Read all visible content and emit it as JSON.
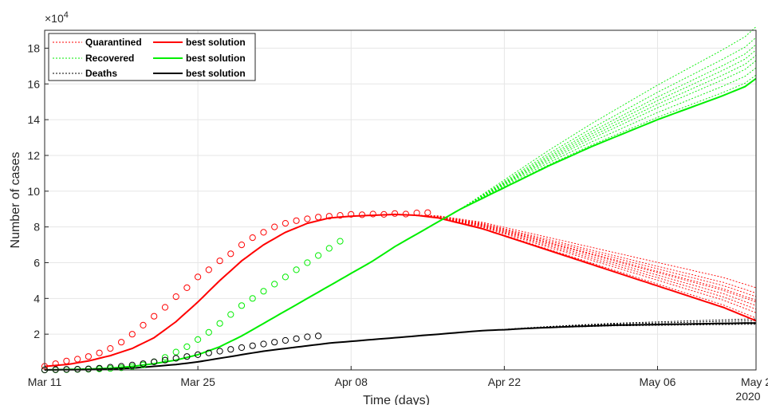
{
  "chart_data": {
    "type": "line",
    "xlabel": "Time (days)",
    "ylabel": "Number of cases",
    "y_exponent_label": "×10",
    "y_exponent_power": "4",
    "x_year_label": "2020",
    "xlim_days": [
      0,
      65
    ],
    "ylim": [
      0,
      19
    ],
    "y_ticks": [
      "2",
      "4",
      "6",
      "8",
      "10",
      "12",
      "14",
      "16",
      "18"
    ],
    "x_ticks": [
      "Mar 11",
      "Mar 25",
      "Apr 08",
      "Apr 22",
      "May 06",
      "May 2"
    ],
    "x_tick_days": [
      0,
      14,
      28,
      42,
      56,
      65
    ],
    "grid": true,
    "legend_position": "top-left",
    "legend": [
      {
        "label": "Quarantined",
        "style": "dotted",
        "color": "#ff0000"
      },
      {
        "label": "best solution",
        "style": "solid",
        "color": "#ff0000"
      },
      {
        "label": "Recovered",
        "style": "dotted",
        "color": "#00ee00"
      },
      {
        "label": "best solution",
        "style": "solid",
        "color": "#00ee00"
      },
      {
        "label": "Deaths",
        "style": "dotted",
        "color": "#000000"
      },
      {
        "label": "best solution",
        "style": "solid",
        "color": "#000000"
      }
    ],
    "colors": {
      "quarantined": "#ff0000",
      "recovered": "#00ee00",
      "deaths": "#000000"
    },
    "best_solution": {
      "quarantined": {
        "x": [
          0,
          2,
          4,
          6,
          8,
          10,
          12,
          14,
          16,
          18,
          20,
          22,
          24,
          26,
          28,
          30,
          32,
          34,
          36,
          38,
          40,
          42,
          44,
          46,
          48,
          50,
          52,
          54,
          56,
          58,
          60,
          62,
          64,
          65
        ],
        "y": [
          0.2,
          0.3,
          0.5,
          0.8,
          1.2,
          1.8,
          2.7,
          3.8,
          5.0,
          6.1,
          7.0,
          7.7,
          8.2,
          8.5,
          8.6,
          8.65,
          8.7,
          8.65,
          8.5,
          8.2,
          7.9,
          7.5,
          7.1,
          6.7,
          6.3,
          5.9,
          5.5,
          5.1,
          4.7,
          4.3,
          3.9,
          3.5,
          3.0,
          2.75
        ]
      },
      "recovered": {
        "x": [
          0,
          4,
          6,
          8,
          10,
          12,
          14,
          16,
          18,
          20,
          22,
          24,
          26,
          28,
          30,
          32,
          34,
          36,
          38,
          40,
          42,
          44,
          46,
          48,
          50,
          52,
          54,
          56,
          58,
          60,
          62,
          64,
          65
        ],
        "y": [
          0,
          0.05,
          0.1,
          0.2,
          0.35,
          0.55,
          0.85,
          1.3,
          1.9,
          2.6,
          3.3,
          4.0,
          4.7,
          5.4,
          6.1,
          6.9,
          7.6,
          8.3,
          9.0,
          9.6,
          10.2,
          10.8,
          11.4,
          11.95,
          12.5,
          13.0,
          13.5,
          14.0,
          14.45,
          14.9,
          15.35,
          15.85,
          16.3
        ]
      },
      "deaths": {
        "x": [
          0,
          4,
          6,
          8,
          10,
          12,
          14,
          16,
          18,
          20,
          22,
          24,
          26,
          28,
          30,
          32,
          34,
          36,
          38,
          40,
          42,
          44,
          46,
          48,
          50,
          52,
          54,
          56,
          58,
          60,
          62,
          64,
          65
        ],
        "y": [
          0,
          0.02,
          0.05,
          0.1,
          0.2,
          0.3,
          0.45,
          0.65,
          0.85,
          1.05,
          1.2,
          1.35,
          1.5,
          1.6,
          1.7,
          1.8,
          1.9,
          2.0,
          2.1,
          2.2,
          2.25,
          2.32,
          2.37,
          2.42,
          2.46,
          2.5,
          2.52,
          2.54,
          2.56,
          2.58,
          2.6,
          2.62,
          2.62
        ]
      }
    },
    "ensemble_endpoints": {
      "quarantined": [
        2.9,
        3.2,
        3.4,
        3.6,
        3.8,
        3.9,
        4.1,
        4.3,
        4.6
      ],
      "recovered": [
        16.5,
        16.9,
        17.3,
        17.6,
        17.9,
        18.2,
        18.6,
        19.2
      ],
      "deaths": [
        2.55,
        2.65,
        2.75,
        2.85
      ]
    },
    "observed": {
      "days": [
        0,
        1,
        2,
        3,
        4,
        5,
        6,
        7,
        8,
        9,
        10,
        11,
        12,
        13,
        14,
        15,
        16,
        17,
        18,
        19,
        20,
        21,
        22,
        23,
        24,
        25,
        26,
        27,
        28,
        29,
        30,
        31,
        32,
        33,
        34,
        35
      ],
      "quarantined": [
        0.2,
        0.35,
        0.5,
        0.6,
        0.75,
        0.95,
        1.2,
        1.55,
        2.0,
        2.5,
        3.0,
        3.5,
        4.1,
        4.6,
        5.2,
        5.6,
        6.1,
        6.5,
        7.0,
        7.4,
        7.7,
        8.0,
        8.2,
        8.35,
        8.45,
        8.55,
        8.6,
        8.65,
        8.7,
        8.68,
        8.72,
        8.7,
        8.75,
        8.72,
        8.78,
        8.8
      ],
      "recovered": [
        0.0,
        0.01,
        0.02,
        0.03,
        0.04,
        0.06,
        0.08,
        0.12,
        0.18,
        0.28,
        0.45,
        0.7,
        1.0,
        1.3,
        1.7,
        2.1,
        2.6,
        3.1,
        3.6,
        4.0,
        4.4,
        4.8,
        5.2,
        5.6,
        6.0,
        6.4,
        6.8,
        7.2,
        0,
        0,
        0,
        0,
        0,
        0,
        0,
        0
      ],
      "deaths": [
        0.0,
        0.02,
        0.03,
        0.04,
        0.06,
        0.1,
        0.15,
        0.2,
        0.27,
        0.35,
        0.45,
        0.55,
        0.65,
        0.75,
        0.85,
        0.95,
        1.05,
        1.15,
        1.25,
        1.35,
        1.45,
        1.55,
        1.65,
        1.75,
        1.85,
        1.9,
        0,
        0,
        0,
        0,
        0,
        0,
        0,
        0,
        0,
        0
      ]
    }
  }
}
